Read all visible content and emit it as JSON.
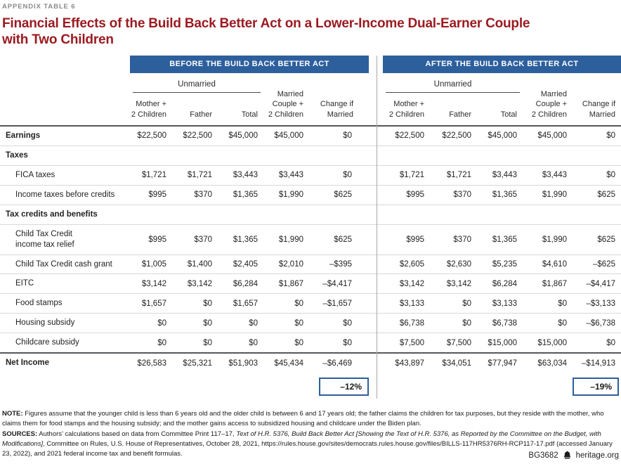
{
  "page": {
    "eyebrow": "APPENDIX TABLE 6",
    "title": "Financial Effects of the Build Back Better Act on a Lower-Income Dual-Earner Couple with Two Children"
  },
  "colors": {
    "accent_blue": "#2d5f9d",
    "title_red": "#9b1b21"
  },
  "table": {
    "before_header": "BEFORE THE BUILD BACK BETTER ACT",
    "after_header": "AFTER THE BUILD BACK BETTER ACT",
    "unmarried_label": "Unmarried",
    "columns": [
      "Mother +\n2 Children",
      "Father",
      "Total",
      "Married\nCouple +\n2 Children",
      "Change if\nMarried"
    ],
    "rows": [
      {
        "label": "Earnings",
        "style": "bold",
        "before": [
          "$22,500",
          "$22,500",
          "$45,000",
          "$45,000",
          "$0"
        ],
        "after": [
          "$22,500",
          "$22,500",
          "$45,000",
          "$45,000",
          "$0"
        ]
      },
      {
        "label": "Taxes",
        "style": "section",
        "before": [],
        "after": []
      },
      {
        "label": "FICA taxes",
        "style": "indent",
        "before": [
          "$1,721",
          "$1,721",
          "$3,443",
          "$3,443",
          "$0"
        ],
        "after": [
          "$1,721",
          "$1,721",
          "$3,443",
          "$3,443",
          "$0"
        ]
      },
      {
        "label": "Income taxes before credits",
        "style": "indent",
        "before": [
          "$995",
          "$370",
          "$1,365",
          "$1,990",
          "$625"
        ],
        "after": [
          "$995",
          "$370",
          "$1,365",
          "$1,990",
          "$625"
        ]
      },
      {
        "label": "Tax credits and benefits",
        "style": "section",
        "before": [],
        "after": []
      },
      {
        "label": "Child Tax Credit\nincome tax relief",
        "style": "indent",
        "before": [
          "$995",
          "$370",
          "$1,365",
          "$1,990",
          "$625"
        ],
        "after": [
          "$995",
          "$370",
          "$1,365",
          "$1,990",
          "$625"
        ]
      },
      {
        "label": "Child Tax Credit cash grant",
        "style": "indent",
        "before": [
          "$1,005",
          "$1,400",
          "$2,405",
          "$2,010",
          "–$395"
        ],
        "after": [
          "$2,605",
          "$2,630",
          "$5,235",
          "$4,610",
          "–$625"
        ]
      },
      {
        "label": "EITC",
        "style": "indent",
        "before": [
          "$3,142",
          "$3,142",
          "$6,284",
          "$1,867",
          "–$4,417"
        ],
        "after": [
          "$3,142",
          "$3,142",
          "$6,284",
          "$1,867",
          "–$4,417"
        ]
      },
      {
        "label": "Food stamps",
        "style": "indent",
        "before": [
          "$1,657",
          "$0",
          "$1,657",
          "$0",
          "–$1,657"
        ],
        "after": [
          "$3,133",
          "$0",
          "$3,133",
          "$0",
          "–$3,133"
        ]
      },
      {
        "label": "Housing subsidy",
        "style": "indent",
        "before": [
          "$0",
          "$0",
          "$0",
          "$0",
          "$0"
        ],
        "after": [
          "$6,738",
          "$0",
          "$6,738",
          "$0",
          "–$6,738"
        ]
      },
      {
        "label": "Childcare subsidy",
        "style": "indent",
        "before": [
          "$0",
          "$0",
          "$0",
          "$0",
          "$0"
        ],
        "after": [
          "$7,500",
          "$7,500",
          "$15,000",
          "$15,000",
          "$0"
        ]
      },
      {
        "label": "Net Income",
        "style": "total",
        "before": [
          "$26,583",
          "$25,321",
          "$51,903",
          "$45,434",
          "–$6,469"
        ],
        "after": [
          "$43,897",
          "$34,051",
          "$77,947",
          "$63,034",
          "–$14,913"
        ]
      }
    ],
    "change_before": "–12%",
    "change_after": "–19%"
  },
  "notes": {
    "note_label": "NOTE:",
    "note_text": "Figures assume that the younger child is less than 6 years old and the older child is between 6 and 17 years old; the father claims the children for tax purposes, but they reside with the mother, who claims them for food stamps and the housing subsidy; and the mother gains access to subsidized housing and childcare under the Biden plan.",
    "sources_label": "SOURCES:",
    "sources_segments": [
      {
        "text": "Authors’ calculations based on data from Committee Print 117–17, ",
        "italic": false
      },
      {
        "text": "Text of H.R. 5376, Build Back Better Act [Showing the Text of H.R. 5376, as Reported by the Committee on the Budget, with Modifications]",
        "italic": true
      },
      {
        "text": ", Committee on Rules, U.S. House of Representatives, October 28, 2021, https://rules.house.gov/sites/democrats.rules.house.gov/files/BILLS-117HR5376RH-RCP117-17.pdf (accessed January 23, 2022), and 2021 federal income tax and benefit formulas.",
        "italic": false
      }
    ]
  },
  "footer": {
    "doc_id": "BG3682",
    "site": "heritage.org"
  }
}
